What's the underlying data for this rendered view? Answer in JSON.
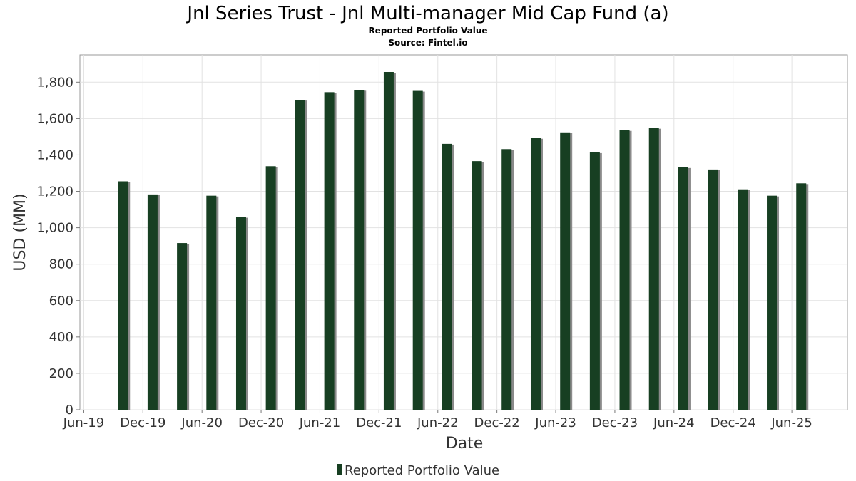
{
  "chart_data": {
    "type": "bar",
    "title": "Jnl Series Trust - Jnl Multi-manager Mid Cap Fund (a)",
    "subtitle": "Reported Portfolio Value",
    "source": "Source: Fintel.io",
    "xlabel": "Date",
    "ylabel": "USD (MM)",
    "ylim": [
      0,
      1950
    ],
    "yticks": [
      0,
      200,
      400,
      600,
      800,
      1000,
      1200,
      1400,
      1600,
      1800
    ],
    "ytick_labels": [
      "0",
      "200",
      "400",
      "600",
      "800",
      "1,000",
      "1,200",
      "1,400",
      "1,600",
      "1,800"
    ],
    "xlim": [
      "2019-05-20",
      "2025-11-20"
    ],
    "xticks": [
      {
        "date": "2019-06-01",
        "label": "Jun-19"
      },
      {
        "date": "2019-12-01",
        "label": "Dec-19"
      },
      {
        "date": "2020-06-01",
        "label": "Jun-20"
      },
      {
        "date": "2020-12-01",
        "label": "Dec-20"
      },
      {
        "date": "2021-06-01",
        "label": "Jun-21"
      },
      {
        "date": "2021-12-01",
        "label": "Dec-21"
      },
      {
        "date": "2022-06-01",
        "label": "Jun-22"
      },
      {
        "date": "2022-12-01",
        "label": "Dec-22"
      },
      {
        "date": "2023-06-01",
        "label": "Jun-23"
      },
      {
        "date": "2023-12-01",
        "label": "Dec-23"
      },
      {
        "date": "2024-06-01",
        "label": "Jun-24"
      },
      {
        "date": "2024-12-01",
        "label": "Dec-24"
      },
      {
        "date": "2025-06-01",
        "label": "Jun-25"
      }
    ],
    "grid": true,
    "legend": "bottom-center",
    "series": [
      {
        "name": "Reported Portfolio Value",
        "color": "#173f22",
        "points": [
          {
            "x": "2019-09-30",
            "y": 1255
          },
          {
            "x": "2019-12-31",
            "y": 1183
          },
          {
            "x": "2020-03-31",
            "y": 916
          },
          {
            "x": "2020-06-30",
            "y": 1176
          },
          {
            "x": "2020-09-30",
            "y": 1059
          },
          {
            "x": "2020-12-31",
            "y": 1338
          },
          {
            "x": "2021-03-31",
            "y": 1703
          },
          {
            "x": "2021-06-30",
            "y": 1745
          },
          {
            "x": "2021-09-30",
            "y": 1757
          },
          {
            "x": "2021-12-31",
            "y": 1856
          },
          {
            "x": "2022-03-31",
            "y": 1752
          },
          {
            "x": "2022-06-30",
            "y": 1461
          },
          {
            "x": "2022-09-30",
            "y": 1366
          },
          {
            "x": "2022-12-31",
            "y": 1432
          },
          {
            "x": "2023-03-31",
            "y": 1493
          },
          {
            "x": "2023-06-30",
            "y": 1524
          },
          {
            "x": "2023-09-30",
            "y": 1414
          },
          {
            "x": "2023-12-31",
            "y": 1536
          },
          {
            "x": "2024-03-31",
            "y": 1548
          },
          {
            "x": "2024-06-30",
            "y": 1332
          },
          {
            "x": "2024-09-30",
            "y": 1320
          },
          {
            "x": "2024-12-31",
            "y": 1211
          },
          {
            "x": "2025-03-31",
            "y": 1176
          },
          {
            "x": "2025-06-30",
            "y": 1244
          }
        ]
      }
    ]
  }
}
